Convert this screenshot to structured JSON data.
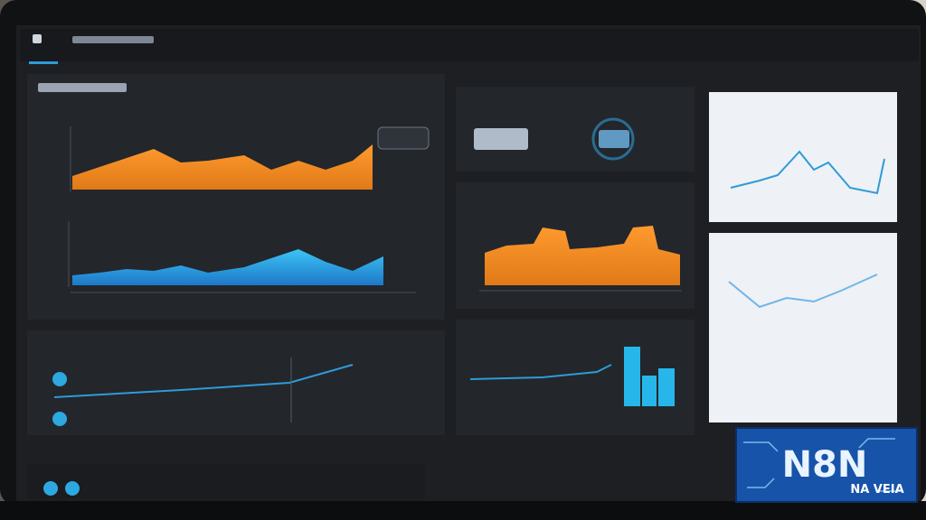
{
  "logo": {
    "title": "N8N",
    "subtitle": "NA VEIA"
  }
}
